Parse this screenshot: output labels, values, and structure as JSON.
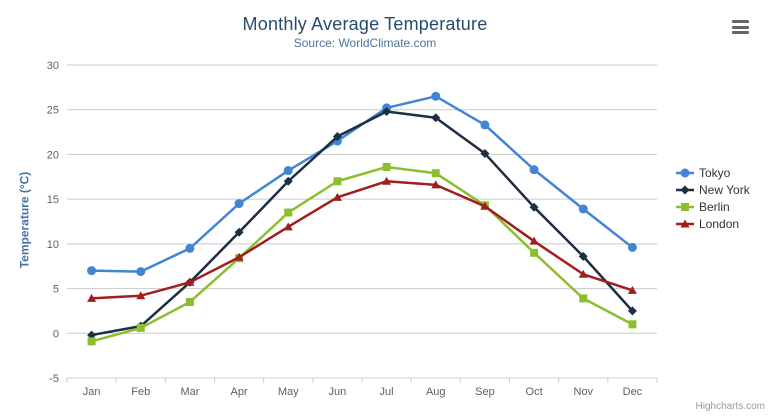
{
  "chart": {
    "title": "Monthly Average Temperature",
    "subtitle": "Source: WorldClimate.com",
    "credit": "Highcharts.com",
    "menu_icon": "hamburger-menu-icon"
  },
  "chart_data": {
    "type": "line",
    "title": "Monthly Average Temperature",
    "subtitle": "Source: WorldClimate.com",
    "categories": [
      "Jan",
      "Feb",
      "Mar",
      "Apr",
      "May",
      "Jun",
      "Jul",
      "Aug",
      "Sep",
      "Oct",
      "Nov",
      "Dec"
    ],
    "series": [
      {
        "name": "Tokyo",
        "color": "#4285d4",
        "marker": "circle",
        "values": [
          7.0,
          6.9,
          9.5,
          14.5,
          18.2,
          21.5,
          25.2,
          26.5,
          23.3,
          18.3,
          13.9,
          9.6
        ]
      },
      {
        "name": "New York",
        "color": "#1d2f42",
        "marker": "diamond",
        "values": [
          -0.2,
          0.8,
          5.7,
          11.3,
          17.0,
          22.0,
          24.8,
          24.1,
          20.1,
          14.1,
          8.6,
          2.5
        ]
      },
      {
        "name": "Berlin",
        "color": "#8bbf2f",
        "marker": "square",
        "values": [
          -0.9,
          0.6,
          3.5,
          8.4,
          13.5,
          17.0,
          18.6,
          17.9,
          14.3,
          9.0,
          3.9,
          1.0
        ]
      },
      {
        "name": "London",
        "color": "#a01e1e",
        "marker": "triangle",
        "values": [
          3.9,
          4.2,
          5.7,
          8.5,
          11.9,
          15.2,
          17.0,
          16.6,
          14.2,
          10.3,
          6.6,
          4.8
        ]
      }
    ],
    "xlabel": "",
    "ylabel": "Temperature (°C)",
    "ylim": [
      -5,
      30
    ],
    "ytick_step": 5,
    "grid": true,
    "legend_position": "right"
  },
  "colors": {
    "title": "#274b6d",
    "subtitle": "#4d759e",
    "axis_label": "#606060",
    "axis_title": "#4572a7",
    "grid": "#c9c9c9",
    "axis_line": "#c0d0e0",
    "legend_text": "#333333",
    "credit": "#999999"
  }
}
